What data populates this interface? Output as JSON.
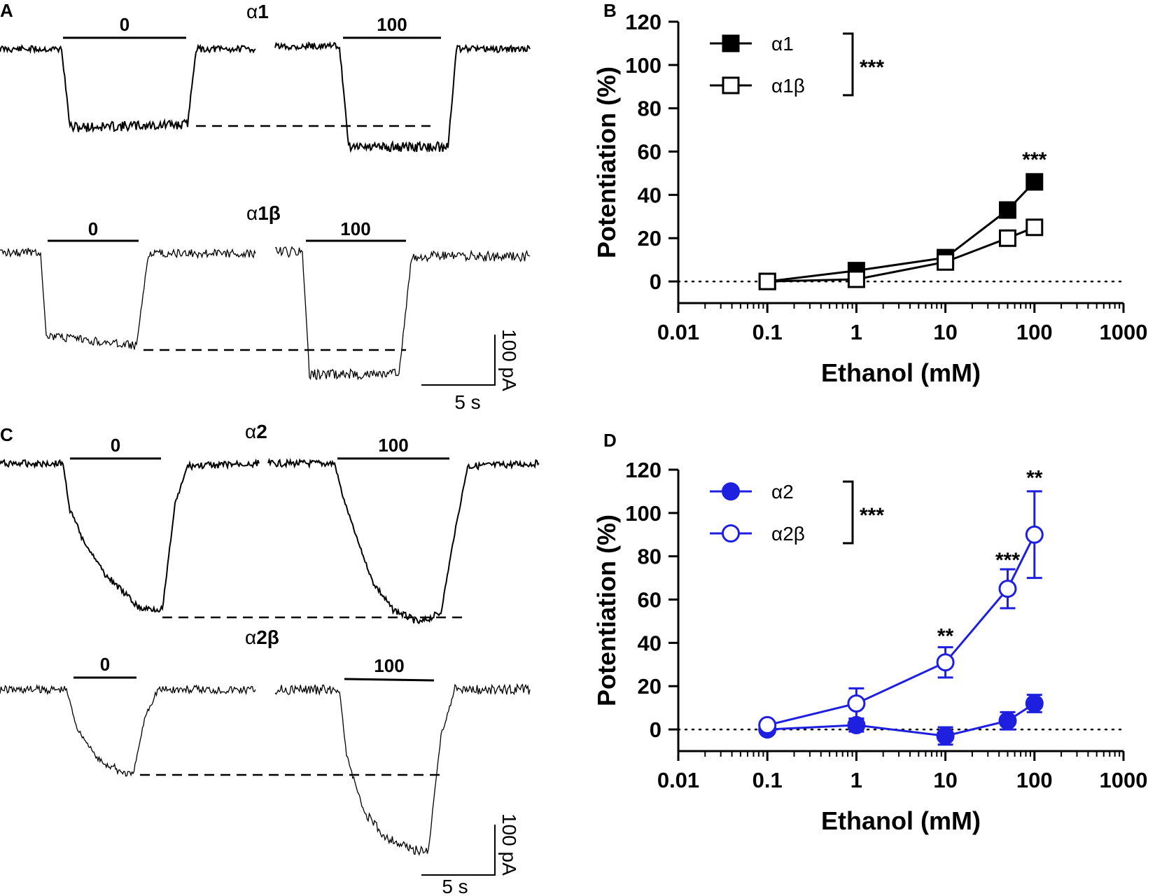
{
  "figure": {
    "panels": {
      "A": {
        "letter": "A",
        "rows": [
          {
            "title_greek": "α",
            "title_rest": "1",
            "left_label": "0",
            "right_label": "100"
          },
          {
            "title_greek": "α",
            "title_rest": "1β",
            "left_label": "0",
            "right_label": "100"
          }
        ],
        "scale": {
          "current": "100 pA",
          "time": "5 s"
        }
      },
      "C": {
        "letter": "C",
        "rows": [
          {
            "title_greek": "α",
            "title_rest": "2",
            "left_label": "0",
            "right_label": "100"
          },
          {
            "title_greek": "α",
            "title_rest": "2β",
            "left_label": "0",
            "right_label": "100"
          }
        ],
        "scale": {
          "current": "100 pA",
          "time": "5 s"
        }
      }
    }
  },
  "chart_data": [
    {
      "panel": "B",
      "type": "line",
      "xscale": "log",
      "xlabel": "Ethanol (mM)",
      "ylabel": "Potentiation (%)",
      "xlim": [
        0.01,
        1000
      ],
      "ylim": [
        -10,
        120
      ],
      "xticks": [
        0.01,
        0.1,
        1,
        10,
        100,
        1000
      ],
      "xtick_labels": [
        "0.01",
        "0.1",
        "1",
        "10",
        "100",
        "1000"
      ],
      "yticks": [
        0,
        20,
        40,
        60,
        80,
        100,
        120
      ],
      "ytick_labels": [
        "0",
        "20",
        "40",
        "60",
        "80",
        "100",
        "120"
      ],
      "reference_line": 0,
      "color": "#000000",
      "legend_placement": "top-left",
      "legend_bracket": "***",
      "series": [
        {
          "name": "α1",
          "marker": "square-filled",
          "x": [
            0.1,
            1,
            10,
            50,
            100
          ],
          "y": [
            0,
            5,
            11,
            33,
            46
          ],
          "err": [
            0,
            0,
            0,
            0,
            0
          ]
        },
        {
          "name": "α1β",
          "marker": "square-open",
          "x": [
            0.1,
            1,
            10,
            50,
            100
          ],
          "y": [
            0,
            1,
            9,
            20,
            25
          ],
          "err": [
            0,
            0,
            0,
            0,
            0
          ]
        }
      ],
      "annotations": [
        {
          "text": "***",
          "x": 100,
          "y": 53
        }
      ]
    },
    {
      "panel": "D",
      "type": "line",
      "xscale": "log",
      "xlabel": "Ethanol (mM)",
      "ylabel": "Potentiation (%)",
      "xlim": [
        0.01,
        1000
      ],
      "ylim": [
        -10,
        120
      ],
      "xticks": [
        0.01,
        0.1,
        1,
        10,
        100,
        1000
      ],
      "xtick_labels": [
        "0.01",
        "0.1",
        "1",
        "10",
        "100",
        "1000"
      ],
      "yticks": [
        0,
        20,
        40,
        60,
        80,
        100,
        120
      ],
      "ytick_labels": [
        "0",
        "20",
        "40",
        "60",
        "80",
        "100",
        "120"
      ],
      "reference_line": 0,
      "color": "#1f1fe0",
      "legend_placement": "top-left",
      "legend_bracket": "***",
      "series": [
        {
          "name": "α2",
          "marker": "circle-filled",
          "x": [
            0.1,
            1,
            10,
            50,
            100
          ],
          "y": [
            0,
            2,
            -3,
            4,
            12
          ],
          "err": [
            0,
            3,
            4,
            4,
            4
          ]
        },
        {
          "name": "α2β",
          "marker": "circle-open",
          "x": [
            0.1,
            1,
            10,
            50,
            100
          ],
          "y": [
            2,
            12,
            31,
            65,
            90
          ],
          "err": [
            0,
            7,
            7,
            9,
            20
          ]
        }
      ],
      "annotations": [
        {
          "text": "**",
          "x": 10,
          "y": 40
        },
        {
          "text": "***",
          "x": 50,
          "y": 75
        },
        {
          "text": "**",
          "x": 100,
          "y": 113
        }
      ]
    }
  ]
}
